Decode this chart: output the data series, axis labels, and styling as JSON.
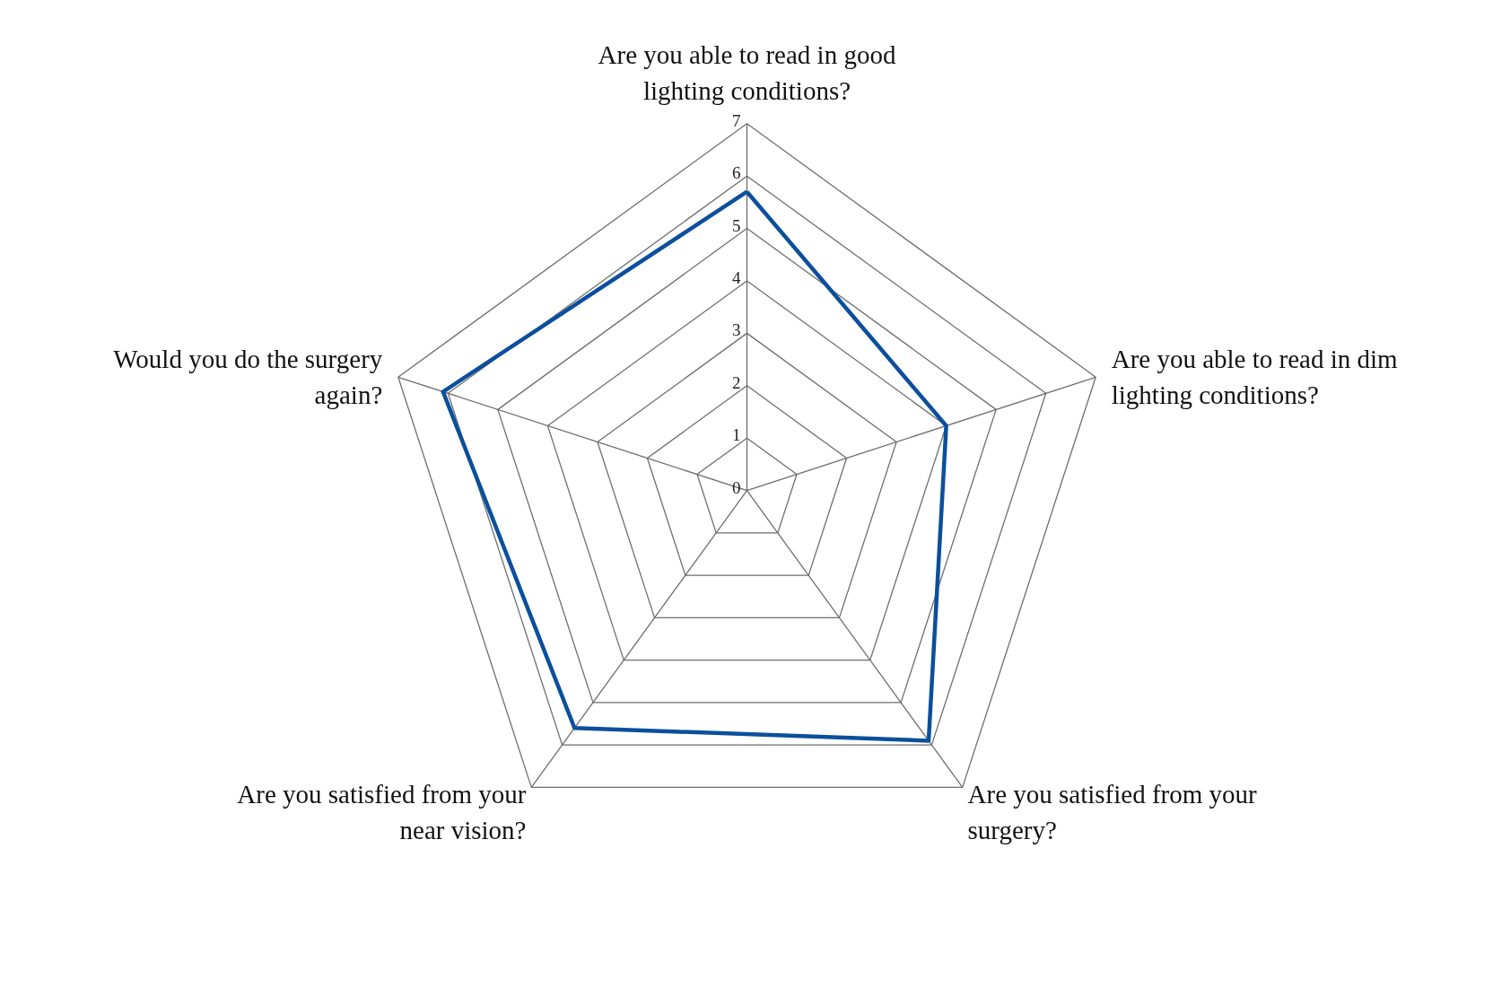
{
  "chart_data": {
    "type": "radar",
    "categories": [
      "Are you able to read in good lighting conditions?",
      "Are you able to read in dim lighting conditions?",
      "Are you satisfied from your surgery?",
      "Are you satisfied from your near vision?",
      "Would you do the surgery again?"
    ],
    "series": [
      {
        "color": "#0b4f9c",
        "values": [
          5.7,
          4.0,
          5.9,
          5.6,
          6.1
        ]
      }
    ],
    "ylim": [
      0,
      7
    ],
    "yticks": [
      0,
      1,
      2,
      3,
      4,
      5,
      6,
      7
    ],
    "grid": true
  }
}
